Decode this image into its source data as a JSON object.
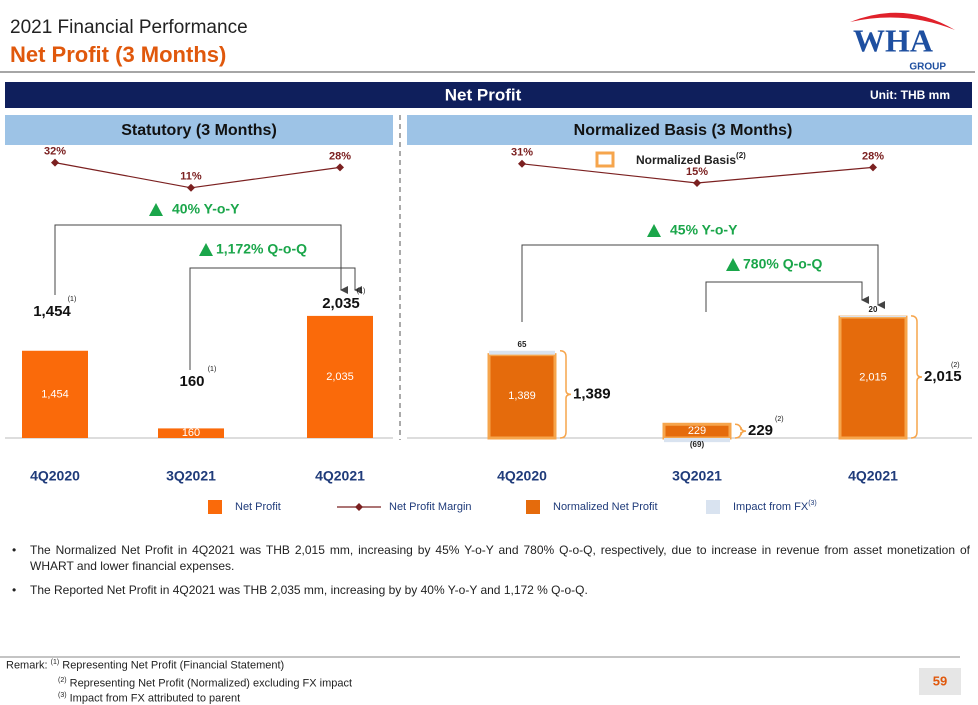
{
  "header": {
    "subtitle": "2021 Financial Performance",
    "title": "Net Profit (3 Months)",
    "logo": "WHA",
    "logo_sub": "GROUP"
  },
  "banner": {
    "title": "Net Profit",
    "unit": "Unit: THB mm"
  },
  "chart_data": [
    {
      "type": "bar",
      "title": "Statutory (3 Months)",
      "categories": [
        "4Q2020",
        "3Q2021",
        "4Q2021"
      ],
      "series": [
        {
          "name": "Net Profit",
          "color": "#fa6a0a",
          "values": [
            1454,
            160,
            2035
          ],
          "value_labels": [
            "1,454",
            "160",
            "2,035"
          ],
          "notes": [
            "(1)",
            "(1)",
            "(1)"
          ]
        },
        {
          "name": "Net Profit Margin",
          "color": "#7b2020",
          "axis": "y2",
          "values": [
            32,
            11,
            28
          ],
          "value_labels": [
            "32%",
            "11%",
            "28%"
          ]
        }
      ],
      "annotations": [
        {
          "text": "40% Y-o-Y"
        },
        {
          "text": "1,172% Q-o-Q"
        }
      ]
    },
    {
      "type": "bar",
      "title": "Normalized Basis (3 Months)",
      "categories": [
        "4Q2020",
        "3Q2021",
        "4Q2021"
      ],
      "series": [
        {
          "name": "Normalized Net Profit",
          "color": "#e56b0c",
          "outline": "#f6a54c",
          "values": [
            1389,
            229,
            2015
          ],
          "value_labels": [
            "1,389",
            "229",
            "2,015"
          ],
          "notes": [
            null,
            "(2)",
            "(2)"
          ]
        },
        {
          "name": "Impact from FX",
          "note": "(3)",
          "color": "#d9e3f0",
          "values": [
            65,
            -69,
            20
          ],
          "value_labels": [
            "65",
            "(69)",
            "20"
          ]
        },
        {
          "name": "Net Profit Margin",
          "color": "#7b2020",
          "axis": "y2",
          "values": [
            31,
            15,
            28
          ],
          "value_labels": [
            "31%",
            "15%",
            "28%"
          ]
        }
      ],
      "outline_legend": {
        "label": "Normalized Basis",
        "note": "(2)"
      },
      "annotations": [
        {
          "text": "45% Y-o-Y"
        },
        {
          "text": "780% Q-o-Q"
        }
      ]
    }
  ],
  "bullets": [
    "The Normalized Net Profit in 4Q2021 was THB 2,015 mm, increasing by 45% Y-o-Y and 780% Q-o-Q, respectively, due to increase in revenue from asset monetization of WHART and lower financial expenses.",
    "The Reported Net Profit in 4Q2021 was THB 2,035 mm, increasing by by 40% Y-o-Y and 1,172 % Q-o-Q."
  ],
  "remark": {
    "label": "Remark:",
    "items": [
      {
        "marker": "(1)",
        "text": "Representing Net Profit (Financial Statement)"
      },
      {
        "marker": "(2)",
        "text": "Representing Net Profit (Normalized) excluding FX impact"
      },
      {
        "marker": "(3)",
        "text": "Impact from FX attributed to parent"
      }
    ]
  },
  "page_number": "59"
}
